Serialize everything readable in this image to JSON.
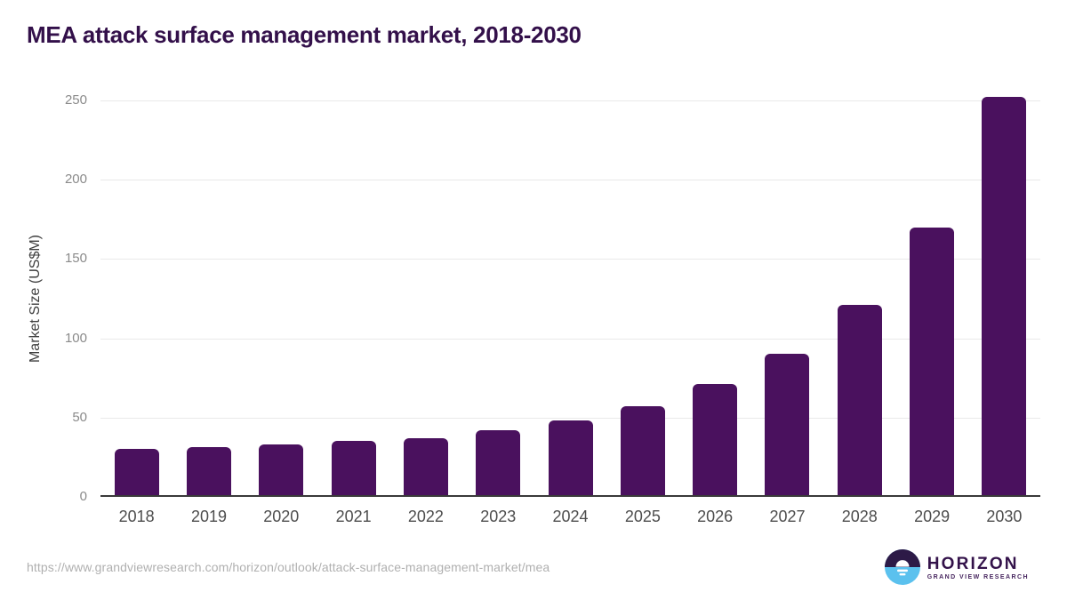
{
  "title": "MEA attack surface management market, 2018-2030",
  "chart_data": {
    "type": "bar",
    "title": "MEA attack surface management market, 2018-2030",
    "categories": [
      "2018",
      "2019",
      "2020",
      "2021",
      "2022",
      "2023",
      "2024",
      "2025",
      "2026",
      "2027",
      "2028",
      "2029",
      "2030"
    ],
    "values": [
      29,
      30,
      32,
      34,
      36,
      41,
      47,
      56,
      70,
      89,
      120,
      169,
      251
    ],
    "xlabel": "",
    "ylabel": "Market Size (US$M)",
    "ylim": [
      0,
      250
    ],
    "yticks": [
      0,
      50,
      100,
      150,
      200,
      250
    ],
    "grid": "horizontal gridlines",
    "legend": "none"
  },
  "footer": {
    "source_url": "https://www.grandviewresearch.com/horizon/outlook/attack-surface-management-market/mea",
    "logo": {
      "wordmark": "HORIZON",
      "subtitle": "GRAND VIEW RESEARCH"
    }
  },
  "colors": {
    "title_text": "#33104a",
    "bar_fill": "#4a115e",
    "axis_baseline": "#3a3a3a",
    "gridline": "#e9e9e9",
    "ytick_text": "#8a8a8a",
    "xlabel_text": "#4d4d4d",
    "url_text": "#b0b0b0",
    "logo_circle_top": "#2d1a47",
    "logo_circle_bottom": "#5bc1ee"
  }
}
